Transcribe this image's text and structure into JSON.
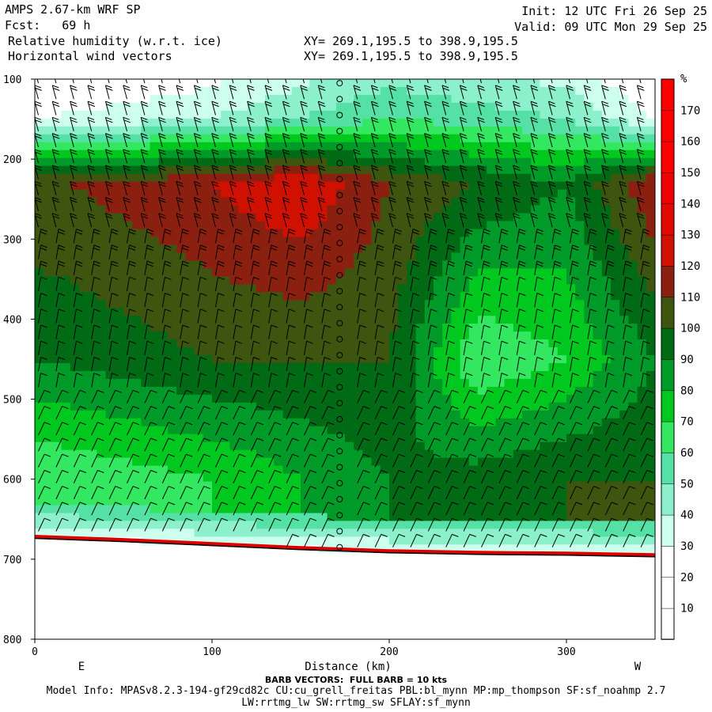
{
  "header": {
    "model": "AMPS 2.67-km WRF SP",
    "forecast": "Fcst:   69 h",
    "field1": "Relative humidity (w.r.t. ice)",
    "field2": "Horizontal wind vectors",
    "xy1": "XY= 269.1,195.5 to 398.9,195.5",
    "xy2": "XY= 269.1,195.5 to 398.9,195.5",
    "init": "Init: 12 UTC Fri 26 Sep 25",
    "valid": "Valid: 09 UTC Mon 29 Sep 25"
  },
  "footer": {
    "barb_note": "BARB VECTORS:  FULL BARB = 10 kts",
    "model_info": "Model Info: MPASv8.2.3-194-gf29cd82c CU:cu_grell_freitas PBL:bl_mynn MP:mp_thompson SF:sf_noahmp 2.7",
    "model_info2": "LW:rrtmg_lw SW:rrtmg_sw SFLAY:sf_mynn"
  },
  "chart_data": {
    "type": "heatmap",
    "title": "Relative humidity (w.r.t. ice)",
    "xlabel": "Distance (km)",
    "ylabel": "",
    "x_left_label": "E",
    "x_right_label": "W",
    "xlim": [
      0,
      350
    ],
    "ylim": [
      800,
      100
    ],
    "x_ticks": [
      0,
      100,
      200,
      300
    ],
    "y_ticks": [
      100,
      200,
      300,
      400,
      500,
      600,
      700,
      800
    ],
    "colorbar": {
      "unit": "%",
      "levels": [
        10,
        20,
        30,
        40,
        50,
        60,
        70,
        80,
        90,
        100,
        110,
        120,
        130,
        140,
        150,
        160,
        170
      ],
      "colors": [
        "#ffffff",
        "#ffffff",
        "#ffffff",
        "#ccffee",
        "#8cf0cc",
        "#55e0a6",
        "#33e860",
        "#00c81e",
        "#009a28",
        "#006a14",
        "#3e5510",
        "#8c2010",
        "#d01000",
        "#e20a00",
        "#f00000",
        "#ff0000",
        "#ff0000",
        "#ff0000"
      ]
    },
    "layers": [
      {
        "name": "surface_pressure_hPa",
        "x": [
          0,
          50,
          100,
          150,
          200,
          250,
          300,
          350
        ],
        "y": [
          672,
          676,
          681,
          686,
          690,
          692,
          693,
          695
        ]
      },
      {
        "name": "rh_pct_at_150hPa",
        "x": [
          0,
          100,
          200,
          300,
          350
        ],
        "y": [
          30,
          40,
          60,
          50,
          30
        ]
      },
      {
        "name": "rh_pct_at_230hPa",
        "x": [
          20,
          100,
          150,
          200,
          250,
          300,
          350
        ],
        "y": [
          110,
          120,
          130,
          110,
          100,
          90,
          120
        ]
      },
      {
        "name": "rh_pct_at_450hPa",
        "x": [
          0,
          100,
          200,
          250,
          300,
          350
        ],
        "y": [
          90,
          100,
          100,
          60,
          70,
          90
        ]
      },
      {
        "name": "rh_pct_at_600hPa",
        "x": [
          0,
          100,
          200,
          300,
          350
        ],
        "y": [
          60,
          70,
          90,
          100,
          100
        ]
      }
    ]
  }
}
